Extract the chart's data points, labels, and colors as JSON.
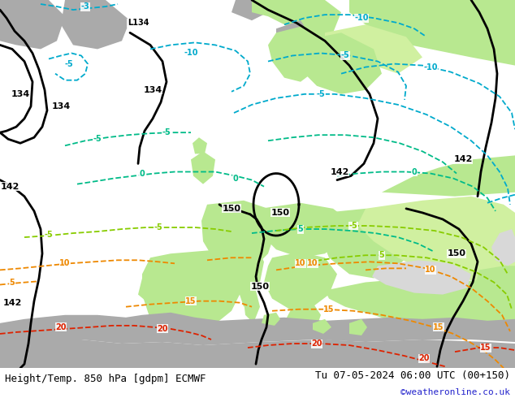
{
  "title_left": "Height/Temp. 850 hPa [gdpm] ECMWF",
  "title_right": "Tu 07-05-2024 06:00 UTC (00+150)",
  "credit": "©weatheronline.co.uk",
  "bg_color": "#ffffff",
  "fig_width": 6.34,
  "fig_height": 4.9,
  "dpi": 100,
  "sea_color": "#d8d8d8",
  "land_green": "#b8e890",
  "land_green2": "#d0f0a0",
  "land_gray": "#aaaaaa",
  "black": "#000000",
  "cyan": "#00aacc",
  "teal": "#00bb88",
  "lime": "#88cc00",
  "orange": "#ee8800",
  "red": "#dd2200",
  "title_fontsize": 9,
  "credit_fontsize": 8,
  "credit_color": "#2222cc",
  "lw_black": 2.0,
  "lw_temp": 1.3
}
